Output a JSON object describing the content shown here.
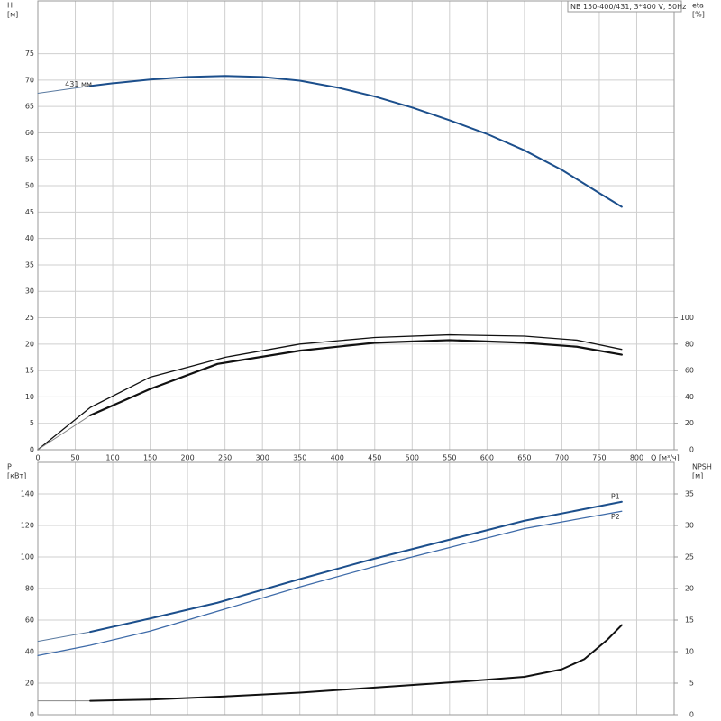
{
  "chart_data": [
    {
      "type": "line",
      "title": "NB 150-400/431, 3*400 V, 50Hz",
      "ylabel": "H",
      "yunit": "[м]",
      "y2label": "eta",
      "y2unit": "[%]",
      "xlabel": "Q [м³/ч]",
      "xlim": [
        0,
        850
      ],
      "xticks": [
        0,
        50,
        100,
        150,
        200,
        250,
        300,
        350,
        400,
        450,
        500,
        550,
        600,
        650,
        700,
        750,
        800
      ],
      "ylim": [
        0,
        85
      ],
      "yticks": [
        0,
        5,
        10,
        15,
        20,
        25,
        30,
        35,
        40,
        45,
        50,
        55,
        60,
        65,
        70,
        75
      ],
      "y2lim": [
        0,
        340
      ],
      "y2ticks": [
        0,
        20,
        40,
        60,
        80,
        100
      ],
      "grid": true,
      "series": [
        {
          "x": [
            0,
            70
          ],
          "values": [
            67.5,
            68.9
          ],
          "color": "#5a7aa0",
          "width": 1
        },
        {
          "name": "431 мм",
          "label_at": "start",
          "x": [
            70,
            100,
            150,
            200,
            250,
            300,
            350,
            400,
            450,
            500,
            550,
            600,
            650,
            700,
            750,
            780
          ],
          "values": [
            68.9,
            69.4,
            70.1,
            70.6,
            70.8,
            70.6,
            69.9,
            68.6,
            66.9,
            64.8,
            62.4,
            59.8,
            56.7,
            53.0,
            48.6,
            46.0
          ],
          "color": "#1c4f8c",
          "width": 2
        },
        {
          "axis": "y2",
          "x": [
            0,
            70,
            150,
            250,
            350,
            450,
            550,
            650,
            720,
            780
          ],
          "values": [
            0,
            32,
            55,
            70,
            80,
            85,
            87,
            86,
            83,
            76
          ],
          "color": "#111111",
          "width": 1.3
        },
        {
          "axis": "y2",
          "x": [
            0,
            70
          ],
          "values": [
            0,
            26
          ],
          "color": "#888888",
          "width": 1
        },
        {
          "axis": "y2",
          "x": [
            70,
            150,
            240,
            350,
            450,
            550,
            650,
            720,
            780
          ],
          "values": [
            26,
            46,
            65,
            75,
            81,
            83,
            81,
            78,
            72
          ],
          "color": "#111111",
          "width": 2.2
        }
      ]
    },
    {
      "type": "line",
      "ylabel": "P",
      "yunit": "[кВт]",
      "y2label": "NPSH",
      "y2unit": "[м]",
      "xlim": [
        0,
        850
      ],
      "ylim": [
        0,
        160
      ],
      "yticks": [
        0,
        20,
        40,
        60,
        80,
        100,
        120,
        140
      ],
      "y2lim": [
        0,
        40
      ],
      "y2ticks": [
        0,
        5,
        10,
        15,
        20,
        25,
        30,
        35
      ],
      "grid": true,
      "series": [
        {
          "x": [
            0,
            70
          ],
          "values": [
            46.5,
            52.5
          ],
          "color": "#5a7aa0",
          "width": 1
        },
        {
          "name": "P1",
          "label_at": "end",
          "x": [
            70,
            150,
            240,
            350,
            450,
            550,
            650,
            780
          ],
          "values": [
            52.5,
            61,
            71,
            86,
            99,
            111,
            123,
            135
          ],
          "color": "#1c4f8c",
          "width": 2
        },
        {
          "name": "P2",
          "label_at": "end",
          "x": [
            0,
            70,
            150,
            250,
            350,
            450,
            550,
            650,
            780
          ],
          "values": [
            37.5,
            44,
            53,
            67,
            81,
            94,
            106,
            118,
            129
          ],
          "color": "#3d6aa8",
          "width": 1.2
        },
        {
          "axis": "y2",
          "x": [
            0,
            70
          ],
          "values": [
            2.2,
            2.2
          ],
          "color": "#888888",
          "width": 1
        },
        {
          "axis": "y2",
          "x": [
            70,
            150,
            250,
            350,
            450,
            550,
            650,
            700,
            730,
            760,
            780
          ],
          "values": [
            2.2,
            2.4,
            2.9,
            3.5,
            4.3,
            5.1,
            6.0,
            7.2,
            8.8,
            11.8,
            14.2
          ],
          "color": "#111111",
          "width": 2
        }
      ]
    }
  ]
}
